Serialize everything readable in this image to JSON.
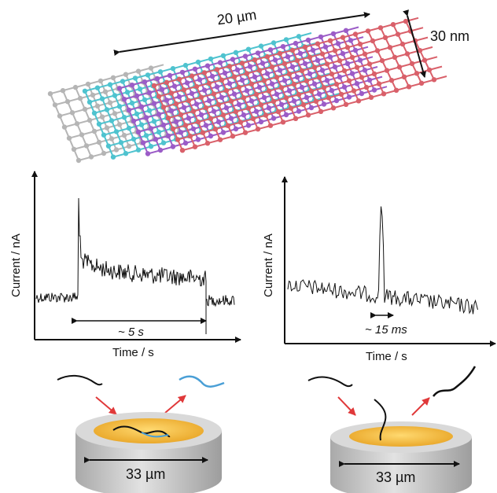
{
  "nanotube": {
    "length_label": "20 µm",
    "diameter_label": "30 nm",
    "colors": [
      "#d9606a",
      "#9b5cc7",
      "#4fc3cf",
      "#b5b5b5"
    ]
  },
  "left_panel": {
    "y_label": "Current / nA",
    "x_label": "Time / s",
    "duration_label": "~ 5 s",
    "electrode_label": "33 µm"
  },
  "right_panel": {
    "y_label": "Current / nA",
    "x_label": "Time / s",
    "duration_label": "~ 15 ms",
    "electrode_label": "33 µm"
  },
  "colors": {
    "arrow_red": "#e0393a",
    "molecule_blue": "#4a9fd6",
    "electrode_gold": "#f2b43a",
    "electrode_gray": "#c9c9c9",
    "trace": "#111111"
  }
}
